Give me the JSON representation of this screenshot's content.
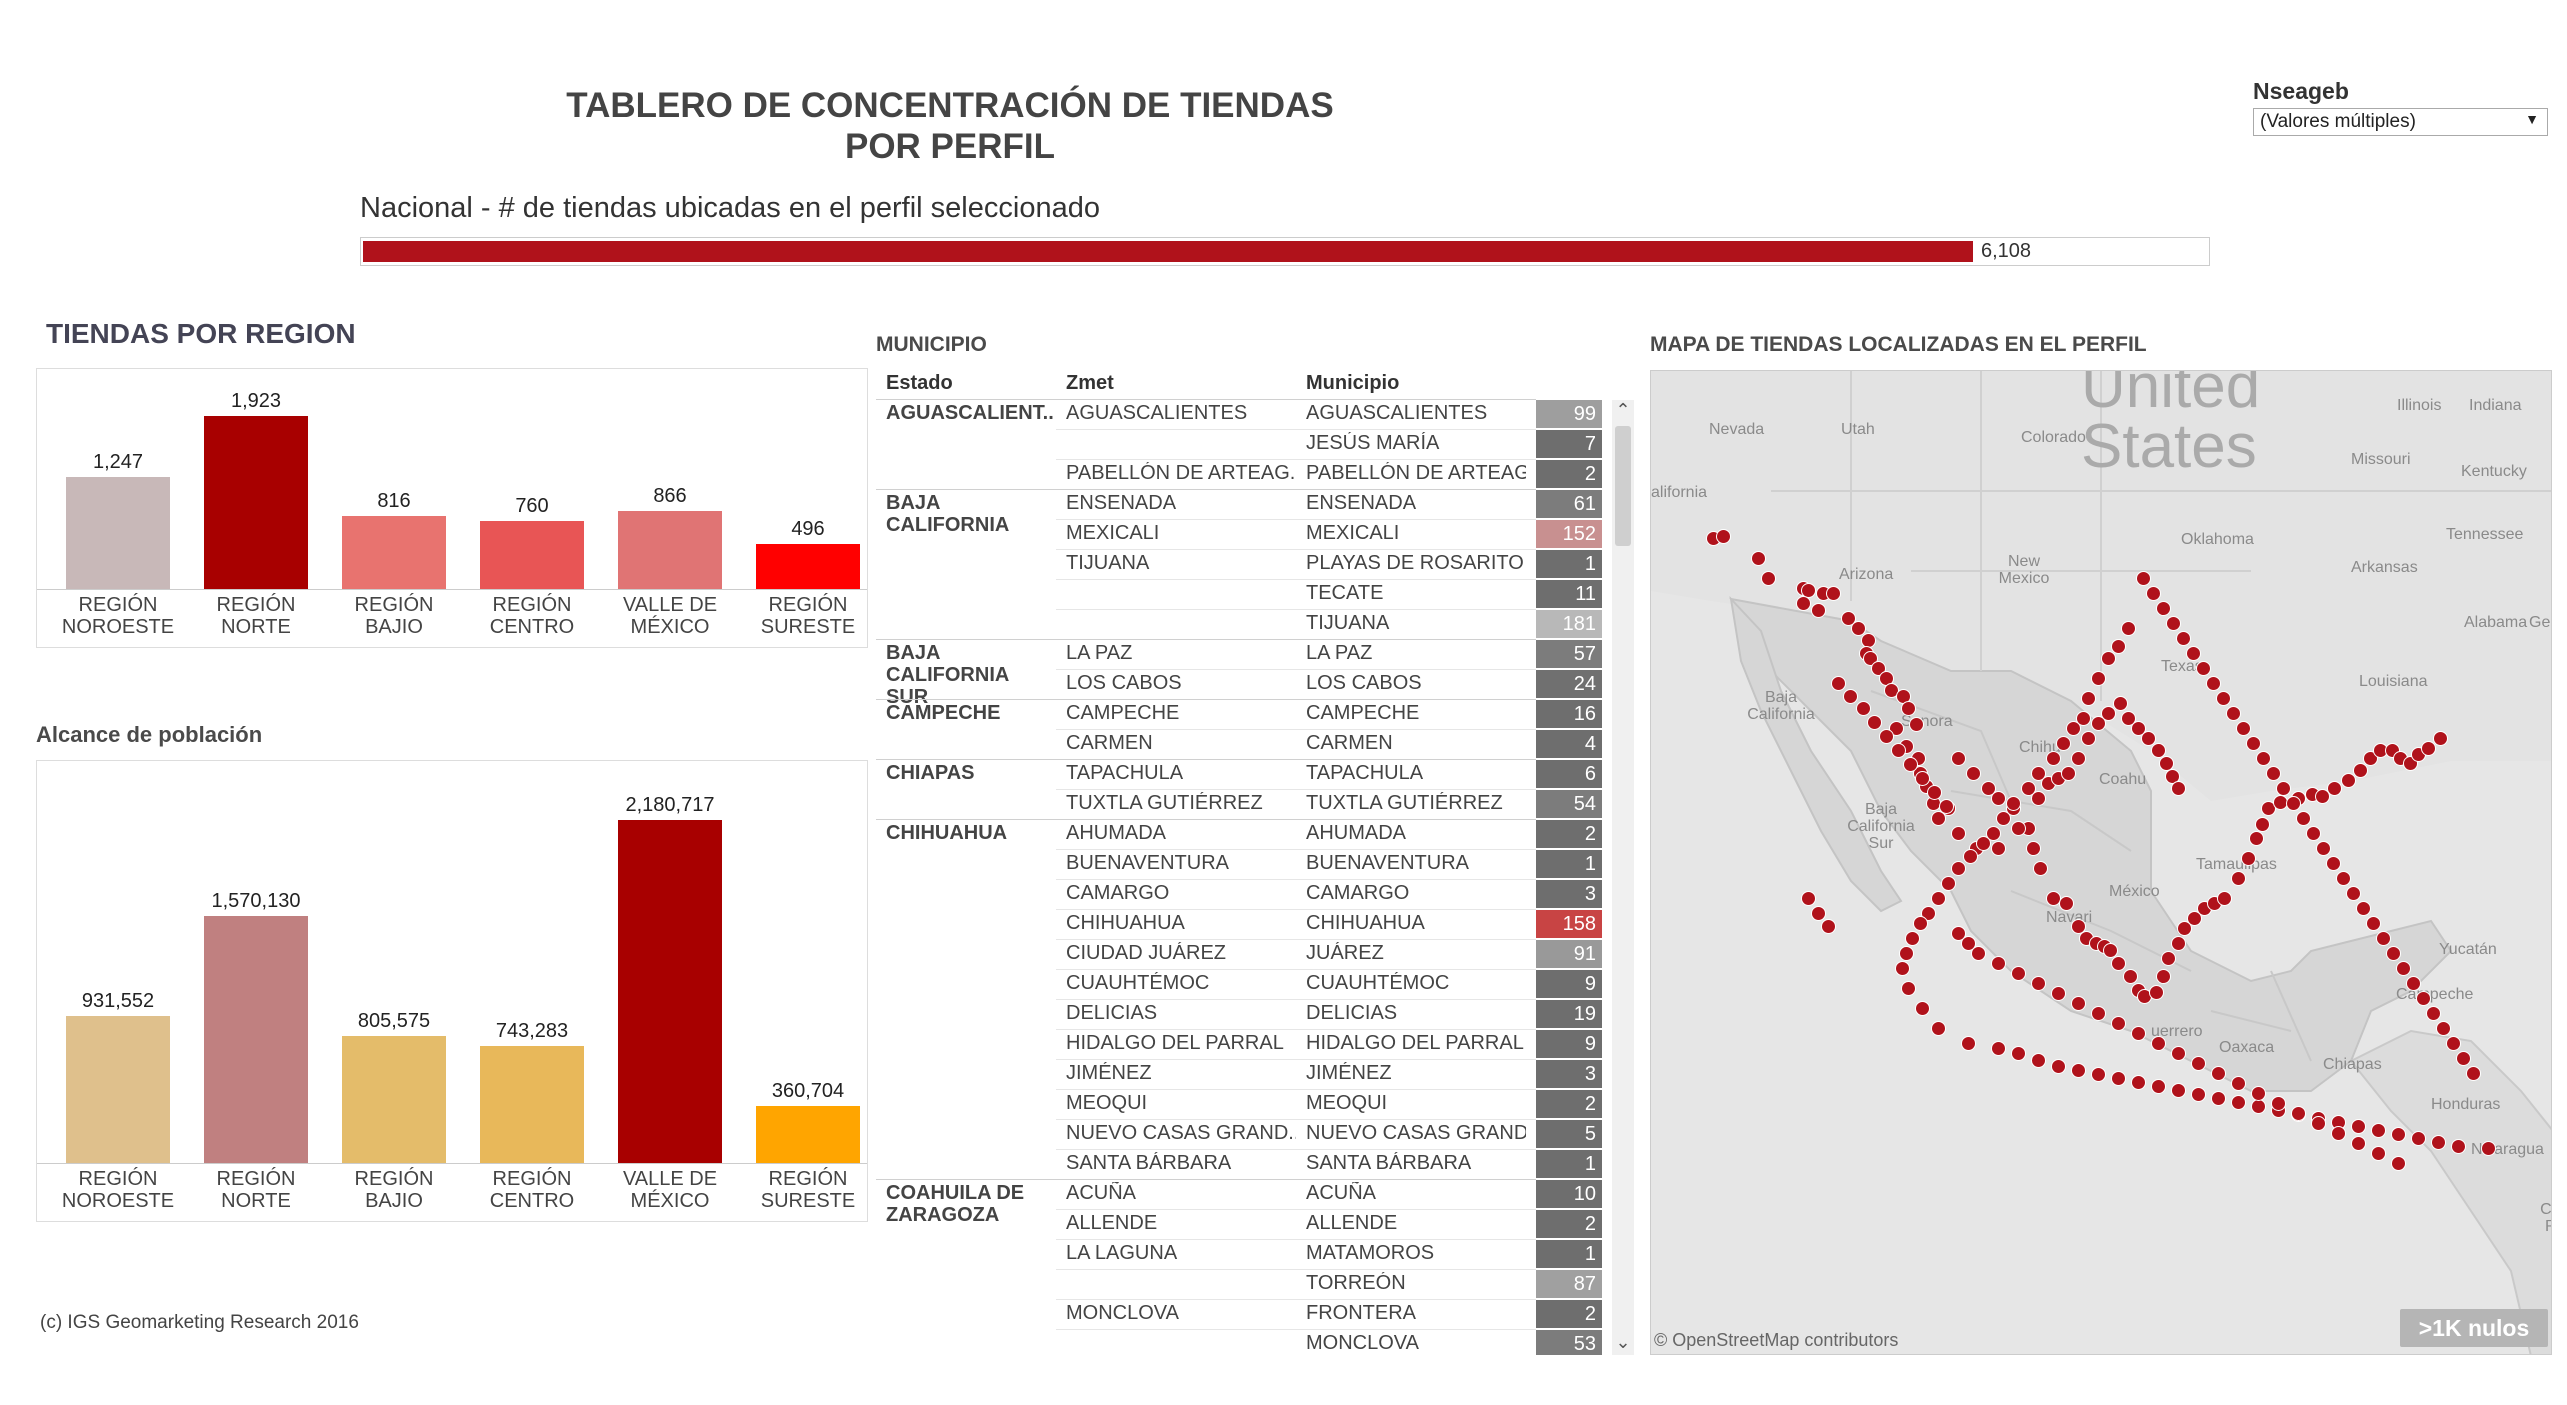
{
  "header": {
    "title_line1": "TABLERO DE CONCENTRACIÓN DE TIENDAS",
    "title_line2": "POR PERFIL",
    "filter_label": "Nseageb",
    "filter_value": "(Valores múltiples)"
  },
  "national": {
    "title": "Nacional - # de tiendas ubicadas en el perfil seleccionado",
    "value_label": "6,108",
    "fill_fraction": 0.92,
    "color": "#b0121b"
  },
  "region_chart": {
    "title": "TIENDAS POR REGION",
    "chart_data": {
      "type": "bar",
      "categories": [
        "REGIÓN NOROESTE",
        "REGIÓN NORTE",
        "REGIÓN BAJIO",
        "REGIÓN CENTRO",
        "VALLE DE MÉXICO",
        "REGIÓN SURESTE"
      ],
      "values": [
        1247,
        1923,
        816,
        760,
        866,
        496
      ],
      "value_labels": [
        "1,247",
        "1,923",
        "816",
        "760",
        "866",
        "496"
      ],
      "colors": [
        "#c8b8b8",
        "#a80000",
        "#e8736f",
        "#e85555",
        "#e07474",
        "#ff0000"
      ],
      "ylim": [
        0,
        2000
      ]
    }
  },
  "alcance_chart": {
    "title": "Alcance de población",
    "chart_data": {
      "type": "bar",
      "categories": [
        "REGIÓN NOROESTE",
        "REGIÓN NORTE",
        "REGIÓN BAJIO",
        "REGIÓN CENTRO",
        "VALLE DE MÉXICO",
        "REGIÓN SURESTE"
      ],
      "values": [
        931552,
        1570130,
        805575,
        743283,
        2180717,
        360704
      ],
      "value_labels": [
        "931,552",
        "1,570,130",
        "805,575",
        "743,283",
        "2,180,717",
        "360,704"
      ],
      "colors": [
        "#dfc08c",
        "#c08080",
        "#e4bc6a",
        "#e8b85a",
        "#a80000",
        "#ffa500"
      ],
      "ylim": [
        0,
        2300000
      ]
    }
  },
  "municipio": {
    "title": "MUNICIPIO",
    "headers": [
      "Estado",
      "Zmet",
      "Municipio"
    ],
    "rows": [
      {
        "estado": "AGUASCALIENT..",
        "zmet": "AGUASCALIENTES",
        "muni": "AGUASCALIENTES",
        "n": "99",
        "color": "#9e9e9e"
      },
      {
        "estado": "",
        "zmet": "",
        "muni": "JESÚS MARÍA",
        "n": "7",
        "color": "#6e6e6e"
      },
      {
        "estado": "",
        "zmet": "PABELLÓN DE ARTEAG..",
        "muni": "PABELLÓN DE ARTEAG..",
        "n": "2",
        "color": "#6e6e6e"
      },
      {
        "estado": "BAJA CALIFORNIA",
        "zmet": "ENSENADA",
        "muni": "ENSENADA",
        "n": "61",
        "color": "#7c7c7c"
      },
      {
        "estado": "",
        "zmet": "MEXICALI",
        "muni": "MEXICALI",
        "n": "152",
        "color": "#c89090"
      },
      {
        "estado": "",
        "zmet": "TIJUANA",
        "muni": "PLAYAS DE ROSARITO",
        "n": "1",
        "color": "#6e6e6e"
      },
      {
        "estado": "",
        "zmet": "",
        "muni": "TECATE",
        "n": "11",
        "color": "#6e6e6e"
      },
      {
        "estado": "",
        "zmet": "",
        "muni": "TIJUANA",
        "n": "181",
        "color": "#b8b8b8"
      },
      {
        "estado": "BAJA CALIFORNIA SUR",
        "zmet": "LA PAZ",
        "muni": "LA PAZ",
        "n": "57",
        "color": "#7c7c7c"
      },
      {
        "estado": "",
        "zmet": "LOS CABOS",
        "muni": "LOS CABOS",
        "n": "24",
        "color": "#707070"
      },
      {
        "estado": "CAMPECHE",
        "zmet": "CAMPECHE",
        "muni": "CAMPECHE",
        "n": "16",
        "color": "#6e6e6e"
      },
      {
        "estado": "",
        "zmet": "CARMEN",
        "muni": "CARMEN",
        "n": "4",
        "color": "#6e6e6e"
      },
      {
        "estado": "CHIAPAS",
        "zmet": "TAPACHULA",
        "muni": "TAPACHULA",
        "n": "6",
        "color": "#6e6e6e"
      },
      {
        "estado": "",
        "zmet": "TUXTLA GUTIÉRREZ",
        "muni": "TUXTLA GUTIÉRREZ",
        "n": "54",
        "color": "#7c7c7c"
      },
      {
        "estado": "CHIHUAHUA",
        "zmet": "AHUMADA",
        "muni": "AHUMADA",
        "n": "2",
        "color": "#6e6e6e"
      },
      {
        "estado": "",
        "zmet": "BUENAVENTURA",
        "muni": "BUENAVENTURA",
        "n": "1",
        "color": "#6e6e6e"
      },
      {
        "estado": "",
        "zmet": "CAMARGO",
        "muni": "CAMARGO",
        "n": "3",
        "color": "#6e6e6e"
      },
      {
        "estado": "",
        "zmet": "CHIHUAHUA",
        "muni": "CHIHUAHUA",
        "n": "158",
        "color": "#c84444"
      },
      {
        "estado": "",
        "zmet": "CIUDAD JUÁREZ",
        "muni": "JUÁREZ",
        "n": "91",
        "color": "#999999"
      },
      {
        "estado": "",
        "zmet": "CUAUHTÉMOC",
        "muni": "CUAUHTÉMOC",
        "n": "9",
        "color": "#6e6e6e"
      },
      {
        "estado": "",
        "zmet": "DELICIAS",
        "muni": "DELICIAS",
        "n": "19",
        "color": "#6e6e6e"
      },
      {
        "estado": "",
        "zmet": "HIDALGO DEL PARRAL",
        "muni": "HIDALGO DEL PARRAL",
        "n": "9",
        "color": "#6e6e6e"
      },
      {
        "estado": "",
        "zmet": "JIMÉNEZ",
        "muni": "JIMÉNEZ",
        "n": "3",
        "color": "#6e6e6e"
      },
      {
        "estado": "",
        "zmet": "MEOQUI",
        "muni": "MEOQUI",
        "n": "2",
        "color": "#6e6e6e"
      },
      {
        "estado": "",
        "zmet": "NUEVO CASAS GRAND..",
        "muni": "NUEVO CASAS GRAND..",
        "n": "5",
        "color": "#6e6e6e"
      },
      {
        "estado": "",
        "zmet": "SANTA BÁRBARA",
        "muni": "SANTA BÁRBARA",
        "n": "1",
        "color": "#6e6e6e"
      },
      {
        "estado": "COAHUILA DE ZARAGOZA",
        "zmet": "ACUÑA",
        "muni": "ACUÑA",
        "n": "10",
        "color": "#6e6e6e"
      },
      {
        "estado": "",
        "zmet": "ALLENDE",
        "muni": "ALLENDE",
        "n": "2",
        "color": "#6e6e6e"
      },
      {
        "estado": "",
        "zmet": "LA LAGUNA",
        "muni": "MATAMOROS",
        "n": "1",
        "color": "#6e6e6e"
      },
      {
        "estado": "",
        "zmet": "",
        "muni": "TORREÓN",
        "n": "87",
        "color": "#a0a0a0"
      },
      {
        "estado": "",
        "zmet": "MONCLOVA",
        "muni": "FRONTERA",
        "n": "2",
        "color": "#6e6e6e"
      },
      {
        "estado": "",
        "zmet": "",
        "muni": "MONCLOVA",
        "n": "53",
        "color": "#7c7c7c"
      }
    ]
  },
  "map": {
    "title": "MAPA DE TIENDAS LOCALIZADAS EN EL PERFIL",
    "labels": {
      "united": "United",
      "states": "States",
      "nevada": "Nevada",
      "utah": "Utah",
      "colorado": "Colorado",
      "illinois": "Illinois",
      "indiana": "Indiana",
      "missouri": "Missouri",
      "kentucky": "Kentucky",
      "oklahoma": "Oklahoma",
      "tennessee": "Tennessee",
      "arizona": "Arizona",
      "new_mexico": "New Mexico",
      "arkansas": "Arkansas",
      "alabama": "Alabama",
      "geor": "Geor",
      "alifornia": "alifornia",
      "texas": "Texas",
      "louisiana": "Louisiana",
      "baja_california": "Baja California",
      "sonora": "Sonora",
      "chihu": "Chihu",
      "coahu": "Coahu",
      "baja_california_sur": "Baja California Sur",
      "tamaulipas": "Tamaulipas",
      "mexico": "México",
      "navari": "Navari",
      "yucatan": "Yucatán",
      "campeche": "Campeche",
      "oaxaca": "Oaxaca",
      "chiapas": "Chiapas",
      "honduras": "Honduras",
      "nicaragua": "Nicaragua",
      "costa_rica": "Costa Rica",
      "uerrero": "uerrero"
    },
    "attribution": "© OpenStreetMap contributors",
    "nulls_badge": ">1K nulos",
    "dot_color": "#b0121b"
  },
  "footer": {
    "copyright": "(c) IGS Geomarketing Research 2016"
  }
}
